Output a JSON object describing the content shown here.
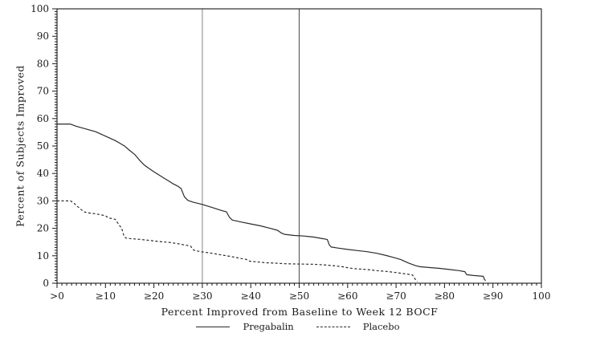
{
  "chart_data": {
    "type": "line",
    "title": "",
    "xlabel": "Percent Improved from Baseline to Week 12 BOCF",
    "ylabel": "Percent of Subjects Improved",
    "xlim": [
      0,
      100
    ],
    "ylim": [
      0,
      100
    ],
    "minor_tick_step": 1,
    "major_tick_step": 10,
    "grid": false,
    "frame_color": "#1a1a1a",
    "x_ticks": [
      {
        "value": 0,
        "label": ">0"
      },
      {
        "value": 10,
        "label": "≥10"
      },
      {
        "value": 20,
        "label": "≥20"
      },
      {
        "value": 30,
        "label": "≥30"
      },
      {
        "value": 40,
        "label": "≥40"
      },
      {
        "value": 50,
        "label": "≥50"
      },
      {
        "value": 60,
        "label": "≥60"
      },
      {
        "value": 70,
        "label": "≥70"
      },
      {
        "value": 80,
        "label": "≥80"
      },
      {
        "value": 90,
        "label": "≥90"
      },
      {
        "value": 100,
        "label": "100"
      }
    ],
    "y_ticks": [
      {
        "value": 0,
        "label": "0"
      },
      {
        "value": 10,
        "label": "10"
      },
      {
        "value": 20,
        "label": "20"
      },
      {
        "value": 30,
        "label": "30"
      },
      {
        "value": 40,
        "label": "40"
      },
      {
        "value": 50,
        "label": "50"
      },
      {
        "value": 60,
        "label": "60"
      },
      {
        "value": 70,
        "label": "70"
      },
      {
        "value": 80,
        "label": "80"
      },
      {
        "value": 90,
        "label": "90"
      },
      {
        "value": 100,
        "label": "100"
      }
    ],
    "reference_lines": [
      {
        "x": 30,
        "color": "#9a9a9a"
      },
      {
        "x": 50,
        "color": "#5f5f5f"
      }
    ],
    "legend_position": "bottom",
    "series": [
      {
        "name": "Pregabalin",
        "style": "solid",
        "color": "#2b2b2b",
        "points": [
          [
            0,
            58
          ],
          [
            2.7,
            58
          ],
          [
            4,
            57.2
          ],
          [
            6,
            56.2
          ],
          [
            8,
            55.2
          ],
          [
            10,
            53.6
          ],
          [
            12,
            52
          ],
          [
            13,
            51
          ],
          [
            14,
            49.9
          ],
          [
            15,
            48.4
          ],
          [
            16,
            47
          ],
          [
            17,
            44.9
          ],
          [
            18,
            43.1
          ],
          [
            19,
            41.8
          ],
          [
            20,
            40.6
          ],
          [
            21,
            39.5
          ],
          [
            22,
            38.4
          ],
          [
            23,
            37.3
          ],
          [
            24,
            36.2
          ],
          [
            25,
            35.3
          ],
          [
            25.6,
            34.5
          ],
          [
            26.3,
            31.5
          ],
          [
            27,
            30.2
          ],
          [
            28,
            29.6
          ],
          [
            30,
            28.7
          ],
          [
            32,
            27.6
          ],
          [
            34,
            26.5
          ],
          [
            35,
            26
          ],
          [
            35.6,
            24
          ],
          [
            36.2,
            23
          ],
          [
            38,
            22.3
          ],
          [
            40,
            21.6
          ],
          [
            42,
            20.9
          ],
          [
            44,
            20
          ],
          [
            45.5,
            19.3
          ],
          [
            46.3,
            18.3
          ],
          [
            47,
            17.8
          ],
          [
            49,
            17.4
          ],
          [
            51,
            17.2
          ],
          [
            53,
            16.8
          ],
          [
            55,
            16.2
          ],
          [
            55.8,
            15.9
          ],
          [
            56.2,
            14
          ],
          [
            56.6,
            13.2
          ],
          [
            58,
            12.8
          ],
          [
            60,
            12.3
          ],
          [
            62,
            11.9
          ],
          [
            64,
            11.5
          ],
          [
            66,
            10.9
          ],
          [
            68,
            10.1
          ],
          [
            69.5,
            9.4
          ],
          [
            71,
            8.6
          ],
          [
            72.5,
            7.4
          ],
          [
            74,
            6.4
          ],
          [
            75,
            6
          ],
          [
            77,
            5.7
          ],
          [
            79,
            5.4
          ],
          [
            81,
            5
          ],
          [
            83,
            4.6
          ],
          [
            84.2,
            4.2
          ],
          [
            84.6,
            3.1
          ],
          [
            86,
            2.8
          ],
          [
            88,
            2.5
          ],
          [
            88.3,
            1.2
          ],
          [
            88.5,
            1
          ]
        ]
      },
      {
        "name": "Placebo",
        "style": "dashed",
        "color": "#2b2b2b",
        "points": [
          [
            0,
            30
          ],
          [
            2.8,
            30
          ],
          [
            3.6,
            29
          ],
          [
            4.2,
            28
          ],
          [
            5,
            26.8
          ],
          [
            5.6,
            26
          ],
          [
            6.5,
            25.6
          ],
          [
            8,
            25.3
          ],
          [
            10,
            24.6
          ],
          [
            10.6,
            23.8
          ],
          [
            11.5,
            23.5
          ],
          [
            12,
            23.3
          ],
          [
            12.4,
            22.3
          ],
          [
            12.8,
            21.2
          ],
          [
            13.2,
            20.4
          ],
          [
            13.5,
            19.2
          ],
          [
            13.8,
            17.3
          ],
          [
            14.2,
            16.5
          ],
          [
            15,
            16.3
          ],
          [
            17,
            16
          ],
          [
            19,
            15.6
          ],
          [
            21,
            15.2
          ],
          [
            23,
            14.9
          ],
          [
            25,
            14.4
          ],
          [
            26.5,
            13.9
          ],
          [
            27.6,
            13.5
          ],
          [
            28,
            12.4
          ],
          [
            28.4,
            11.9
          ],
          [
            30,
            11.4
          ],
          [
            32,
            10.9
          ],
          [
            34,
            10.3
          ],
          [
            36,
            9.7
          ],
          [
            38,
            9
          ],
          [
            39,
            8.7
          ],
          [
            39.8,
            8
          ],
          [
            41,
            7.8
          ],
          [
            43,
            7.5
          ],
          [
            45,
            7.3
          ],
          [
            47,
            7.1
          ],
          [
            50,
            7
          ],
          [
            53,
            6.9
          ],
          [
            55,
            6.7
          ],
          [
            57,
            6.4
          ],
          [
            59,
            6
          ],
          [
            60.5,
            5.5
          ],
          [
            62,
            5.2
          ],
          [
            64,
            5
          ],
          [
            66,
            4.6
          ],
          [
            68,
            4.3
          ],
          [
            70,
            3.9
          ],
          [
            72,
            3.4
          ],
          [
            73.4,
            3
          ],
          [
            73.8,
            1.8
          ],
          [
            74.2,
            0.9
          ],
          [
            74.4,
            0.6
          ]
        ]
      }
    ]
  }
}
